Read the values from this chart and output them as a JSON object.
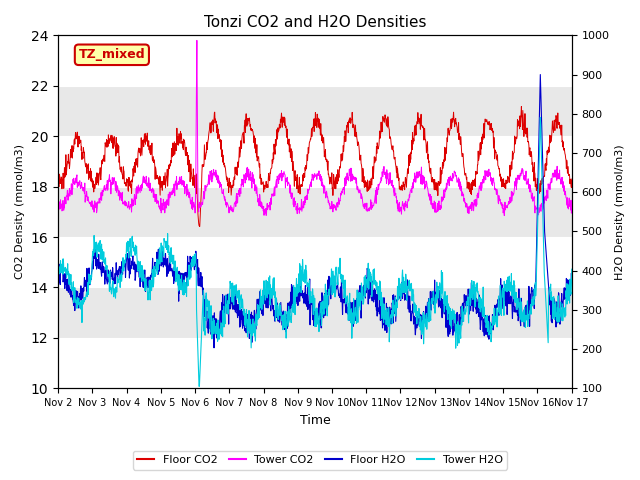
{
  "title": "Tonzi CO2 and H2O Densities",
  "xlabel": "Time",
  "ylabel_left": "CO2 Density (mmol/m3)",
  "ylabel_right": "H2O Density (mmol/m3)",
  "ylim_left": [
    10,
    24
  ],
  "ylim_right": [
    100,
    1000
  ],
  "yticks_left": [
    10,
    12,
    14,
    16,
    18,
    20,
    22,
    24
  ],
  "yticks_right": [
    100,
    200,
    300,
    400,
    500,
    600,
    700,
    800,
    900,
    1000
  ],
  "annotation": "TZ_mixed",
  "annotation_color": "#cc0000",
  "annotation_bg": "#ffffaa",
  "xtick_labels": [
    "Nov 2",
    "Nov 3",
    "Nov 4",
    "Nov 5",
    "Nov 6",
    "Nov 7",
    "Nov 8",
    "Nov 9",
    "Nov 10",
    "Nov 11",
    "Nov 12",
    "Nov 13",
    "Nov 14",
    "Nov 15",
    "Nov 16",
    "Nov 17"
  ],
  "colors": {
    "floor_co2": "#dd0000",
    "tower_co2": "#ff00ff",
    "floor_h2o": "#0000cc",
    "tower_h2o": "#00ccdd"
  },
  "legend_labels": [
    "Floor CO2",
    "Tower CO2",
    "Floor H2O",
    "Tower H2O"
  ],
  "background_color": "#e8e8e8",
  "band_color": "#d0d0d0",
  "grid_color": "#ffffff"
}
